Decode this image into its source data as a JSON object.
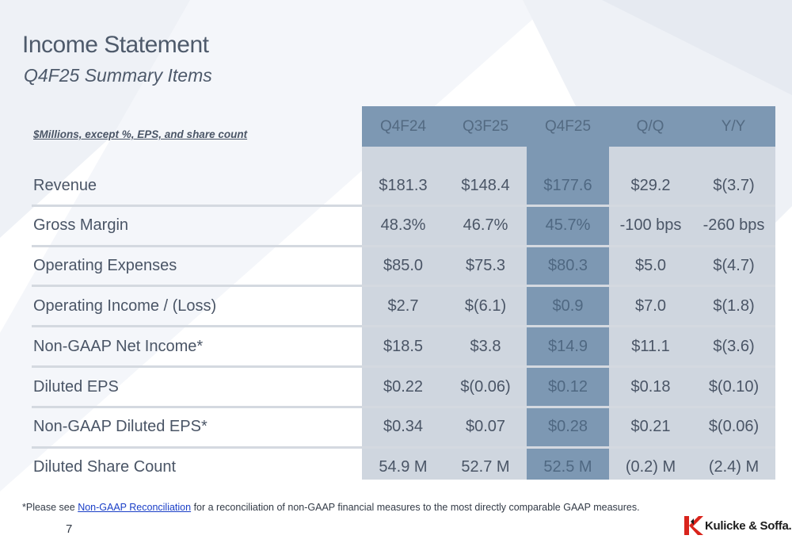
{
  "title": "Income Statement",
  "subtitle": "Q4F25 Summary Items",
  "units_note": "$Millions, except %, EPS, and share count",
  "columns": [
    "Q4F24",
    "Q3F25",
    "Q4F25",
    "Q/Q",
    "Y/Y"
  ],
  "highlight_column": "Q4F25",
  "rows": [
    {
      "label": "Revenue",
      "values": [
        "$181.3",
        "$148.4",
        "$177.6",
        "$29.2",
        "$(3.7)"
      ]
    },
    {
      "label": "Gross Margin",
      "values": [
        "48.3%",
        "46.7%",
        "45.7%",
        "-100 bps",
        "-260 bps"
      ]
    },
    {
      "label": "Operating Expenses",
      "values": [
        "$85.0",
        "$75.3",
        "$80.3",
        "$5.0",
        "$(4.7)"
      ]
    },
    {
      "label": "Operating Income / (Loss)",
      "values": [
        "$2.7",
        "$(6.1)",
        "$0.9",
        "$7.0",
        "$(1.8)"
      ]
    },
    {
      "label": "Non-GAAP Net Income*",
      "values": [
        "$18.5",
        "$3.8",
        "$14.9",
        "$11.1",
        "$(3.6)"
      ]
    },
    {
      "label": "Diluted EPS",
      "values": [
        "$0.22",
        "$(0.06)",
        "$0.12",
        "$0.18",
        "$(0.10)"
      ]
    },
    {
      "label": "Non-GAAP Diluted EPS*",
      "values": [
        "$0.34",
        "$0.07",
        "$0.28",
        "$0.21",
        "$(0.06)"
      ]
    },
    {
      "label": "Diluted Share Count",
      "values": [
        "54.9 M",
        "52.7 M",
        "52.5 M",
        "(0.2) M",
        "(2.4) M"
      ]
    }
  ],
  "footnote": {
    "prefix": "*Please see ",
    "link_text": "Non-GAAP Reconciliation",
    "suffix": " for a reconciliation of non-GAAP financial measures to the most directly comparable GAAP measures."
  },
  "page_number": "7",
  "logo_text": "Kulicke & Soffa.",
  "colors": {
    "header_fill": "#7d98b3",
    "column_fill": "#cfd6df",
    "text": "#4a5566",
    "link": "#1a3fc7"
  }
}
